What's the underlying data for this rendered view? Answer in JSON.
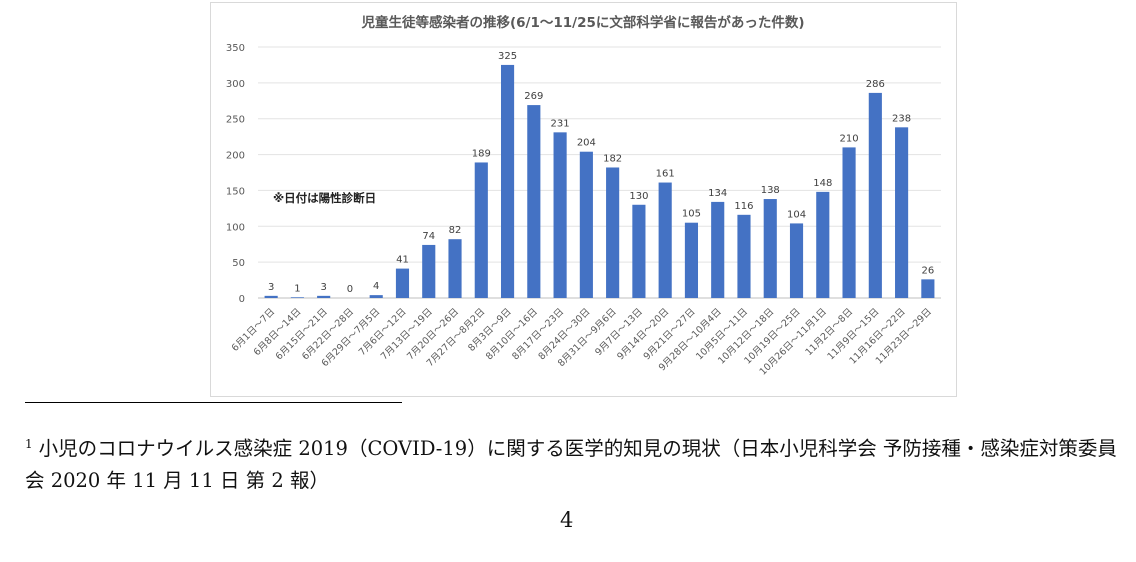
{
  "chart_data": {
    "type": "bar",
    "title": "児童生徒等感染者の推移(6/1～11/25に文部科学省に報告があった件数)",
    "annotation": "※日付は陽性診断日",
    "categories": [
      "6月1日～7日",
      "6月8日～14日",
      "6月15日～21日",
      "6月22日～28日",
      "6月29日～7月5日",
      "7月6日～12日",
      "7月13日～19日",
      "7月20日～26日",
      "7月27日～8月2日",
      "8月3日～9日",
      "8月10日～16日",
      "8月17日～23日",
      "8月24日～30日",
      "8月31日～9月6日",
      "9月7日～13日",
      "9月14日～20日",
      "9月21日～27日",
      "9月28日～10月4日",
      "10月5日～11日",
      "10月12日～18日",
      "10月19日～25日",
      "10月26日～11月1日",
      "11月2日～8日",
      "11月9日～15日",
      "11月16日～22日",
      "11月23日～29日"
    ],
    "values": [
      3,
      1,
      3,
      0,
      4,
      41,
      74,
      82,
      189,
      325,
      269,
      231,
      204,
      182,
      130,
      161,
      105,
      134,
      116,
      138,
      104,
      148,
      210,
      286,
      238,
      26
    ],
    "yticks": [
      0,
      50,
      100,
      150,
      200,
      250,
      300,
      350
    ],
    "ylim": [
      0,
      350
    ],
    "xlabel": "",
    "ylabel": "",
    "grid": true,
    "bar_color": "#4472c4"
  },
  "footnote": {
    "number": "1",
    "text": "小児のコロナウイルス感染症 2019（COVID-19）に関する医学的知見の現状（日本小児科学会 予防接種・感染症対策委員会 2020 年 11 月 11 日 第 2 報）"
  },
  "page_number": "4"
}
